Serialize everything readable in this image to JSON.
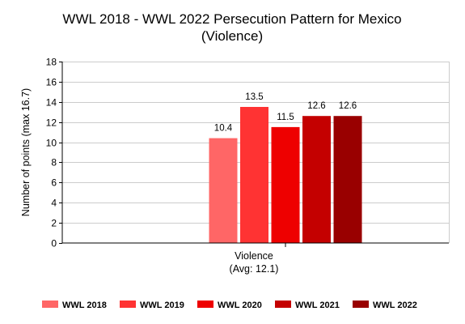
{
  "chart_data": {
    "type": "bar",
    "title_lines": [
      "WWL 2018 - WWL 2022 Persecution Pattern for Mexico",
      "(Violence)"
    ],
    "ylabel": "Number of points (max 16.7)",
    "xlabel": "",
    "categories": [
      "Violence"
    ],
    "category_avg_label": "(Avg: 12.1)",
    "ylim": [
      0,
      18
    ],
    "yticks": [
      0,
      2,
      4,
      6,
      8,
      10,
      12,
      14,
      16,
      18
    ],
    "grid": true,
    "legend_position": "bottom",
    "series": [
      {
        "name": "WWL 2018",
        "values": [
          10.4
        ],
        "label": "10.4",
        "color": "#ff6666"
      },
      {
        "name": "WWL 2019",
        "values": [
          13.5
        ],
        "label": "13.5",
        "color": "#ff3333"
      },
      {
        "name": "WWL 2020",
        "values": [
          11.5
        ],
        "label": "11.5",
        "color": "#ee0000"
      },
      {
        "name": "WWL 2021",
        "values": [
          12.6
        ],
        "label": "12.6",
        "color": "#c40000"
      },
      {
        "name": "WWL 2022",
        "values": [
          12.6
        ],
        "label": "12.6",
        "color": "#990000"
      }
    ]
  }
}
